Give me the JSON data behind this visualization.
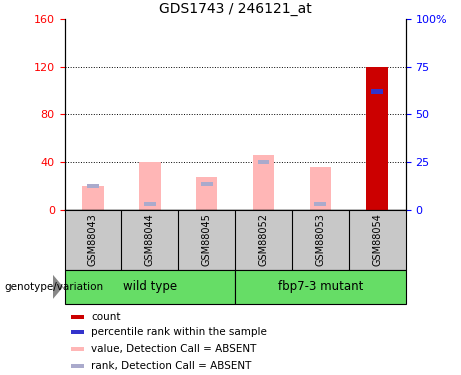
{
  "title": "GDS1743 / 246121_at",
  "samples": [
    "GSM88043",
    "GSM88044",
    "GSM88045",
    "GSM88052",
    "GSM88053",
    "GSM88054"
  ],
  "pink_bars": [
    20,
    40,
    28,
    46,
    36,
    0
  ],
  "blue_squares_value": [
    20,
    5,
    22,
    40,
    5,
    0
  ],
  "red_bar_idx": 5,
  "red_bar_val": 120,
  "blue_rank_val": 62,
  "left_ylim": [
    0,
    160
  ],
  "right_ylim": [
    0,
    100
  ],
  "left_yticks": [
    0,
    40,
    80,
    120,
    160
  ],
  "right_yticks": [
    0,
    25,
    50,
    75,
    100
  ],
  "right_yticklabels": [
    "0",
    "25",
    "50",
    "75",
    "100%"
  ],
  "grid_lines": [
    40,
    80,
    120
  ],
  "color_red": "#CC0000",
  "color_blue": "#3333CC",
  "color_pink": "#FFB6B6",
  "color_lavender": "#AAAACC",
  "color_green_light": "#66DD66",
  "color_gray": "#C8C8C8",
  "legend_items": [
    {
      "color": "#CC0000",
      "label": "count"
    },
    {
      "color": "#3333CC",
      "label": "percentile rank within the sample"
    },
    {
      "color": "#FFB6B6",
      "label": "value, Detection Call = ABSENT"
    },
    {
      "color": "#AAAACC",
      "label": "rank, Detection Call = ABSENT"
    }
  ],
  "genotype_label": "genotype/variation",
  "wild_type_label": "wild type",
  "mutant_label": "fbp7-3 mutant"
}
